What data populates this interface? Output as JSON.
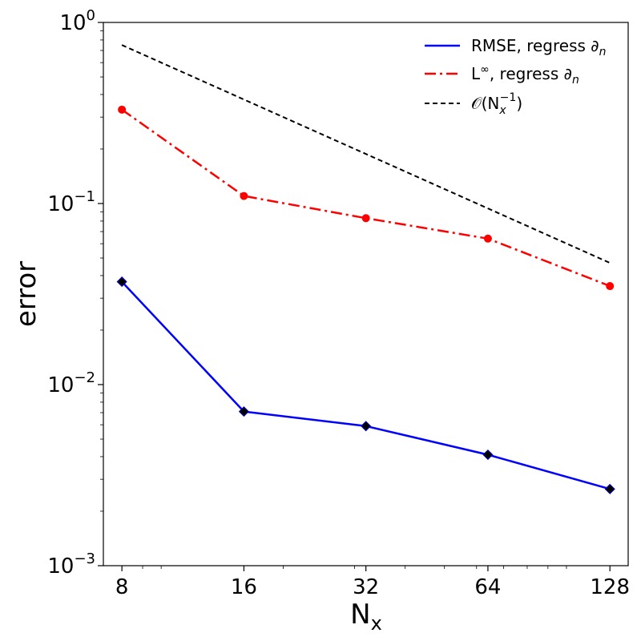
{
  "chart_data": {
    "type": "line",
    "xlabel": "N",
    "xlabel_sub": "x",
    "ylabel": "error",
    "xscale": "log",
    "yscale": "log",
    "xlim": [
      7.2,
      142
    ],
    "ylim": [
      0.001,
      1
    ],
    "x": [
      8,
      16,
      32,
      64,
      128
    ],
    "xtick_labels": [
      "8",
      "16",
      "32",
      "64",
      "128"
    ],
    "ytick_base": "10",
    "ytick_exponents": [
      "0",
      "−1",
      "−2",
      "−3"
    ],
    "ytick_values": [
      1,
      0.1,
      0.01,
      0.001
    ],
    "grid": false,
    "legend_position": "top-right",
    "series": [
      {
        "name": "RMSE, regress ∂",
        "name_sub": "n",
        "values": [
          0.037,
          0.0071,
          0.0059,
          0.0041,
          0.00265
        ],
        "color": "#0000ff",
        "line": "solid",
        "marker": "diamond",
        "marker_color": "#000000"
      },
      {
        "name": "L",
        "name_sup": "∞",
        "name_rest": ", regress ∂",
        "name_sub": "n",
        "values": [
          0.33,
          0.11,
          0.083,
          0.064,
          0.035
        ],
        "color": "#ff0000",
        "line": "dashdot",
        "marker": "circle",
        "marker_color": "#ff0000"
      },
      {
        "name": "𝒪(N",
        "name_sub": "x",
        "name_sup": "−1",
        "name_rest": ")",
        "x": [
          8,
          128
        ],
        "values": [
          0.75,
          0.047
        ],
        "color": "#000000",
        "line": "dashed",
        "marker": "none"
      }
    ]
  }
}
